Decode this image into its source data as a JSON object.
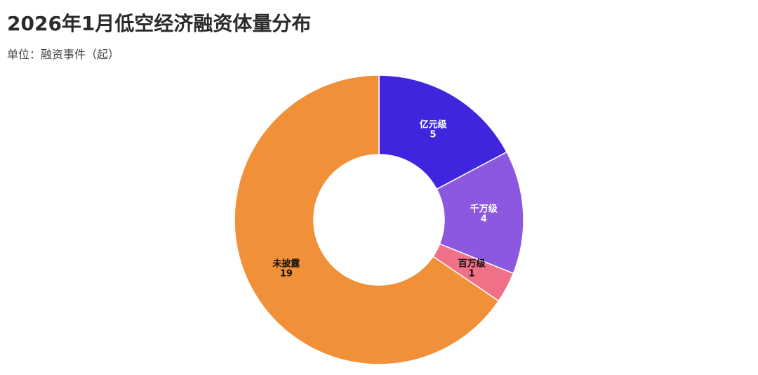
{
  "chart_data": {
    "type": "donut",
    "title": "2026年1月低空经济融资体量分布",
    "subtitle": "单位：融资事件（起）",
    "categories": [
      "亿元级",
      "千万级",
      "百万级",
      "未披露"
    ],
    "values": [
      5,
      4,
      1,
      19
    ],
    "colors": [
      "#3f26de",
      "#8c58e0",
      "#f07087",
      "#f09038"
    ]
  }
}
